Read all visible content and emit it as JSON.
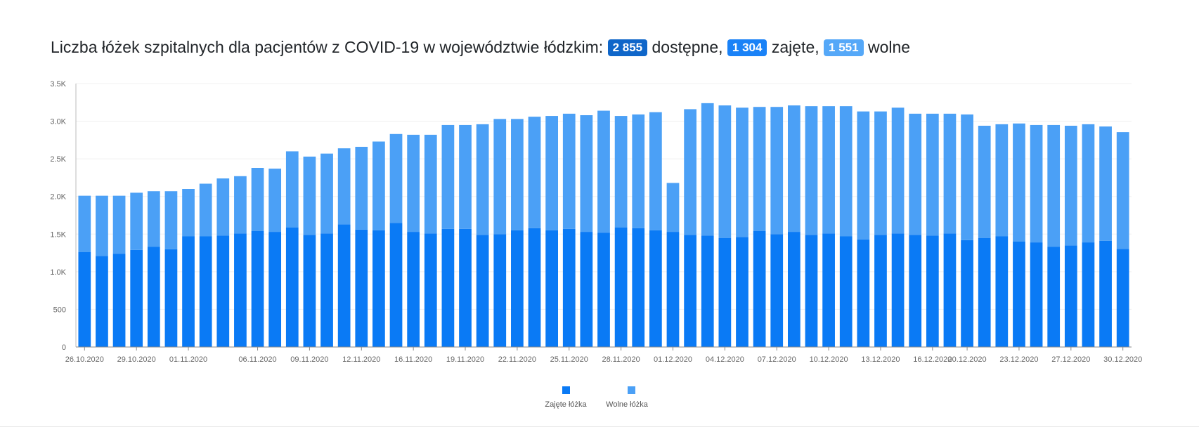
{
  "title": {
    "prefix": "Liczba łóżek szpitalnych dla pacjentów z COVID-19 w województwie łódzkim:",
    "total": "2 855",
    "total_suffix": "dostępne,",
    "occupied": "1 304",
    "occupied_suffix": "zajęte,",
    "free": "1 551",
    "free_suffix": "wolne"
  },
  "colors": {
    "occupied": "#0a7af5",
    "free": "#4ba0f6",
    "badge_total": "#0f66c9",
    "badge_occupied": "#1a82f7",
    "badge_free": "#55a8f8"
  },
  "chart_data": {
    "type": "bar",
    "stacked": true,
    "legend_position": "bottom-center",
    "grid": true,
    "ylim": [
      0,
      3500
    ],
    "yticks": [
      0,
      500,
      1000,
      1500,
      2000,
      2500,
      3000,
      3500
    ],
    "ytick_labels": [
      "0",
      "500",
      "1.0K",
      "1.5K",
      "2.0K",
      "2.5K",
      "3.0K",
      "3.5K"
    ],
    "x": [
      "26.10.2020",
      "27.10.2020",
      "28.10.2020",
      "29.10.2020",
      "30.10.2020",
      "31.10.2020",
      "01.11.2020",
      "02.11.2020",
      "03.11.2020",
      "05.11.2020",
      "06.11.2020",
      "07.11.2020",
      "08.11.2020",
      "09.11.2020",
      "10.11.2020",
      "11.11.2020",
      "12.11.2020",
      "13.11.2020",
      "14.11.2020",
      "16.11.2020",
      "17.11.2020",
      "18.11.2020",
      "19.11.2020",
      "20.11.2020",
      "21.11.2020",
      "22.11.2020",
      "23.11.2020",
      "24.11.2020",
      "25.11.2020",
      "26.11.2020",
      "27.11.2020",
      "28.11.2020",
      "29.11.2020",
      "30.11.2020",
      "01.12.2020",
      "02.12.2020",
      "03.12.2020",
      "04.12.2020",
      "05.12.2020",
      "06.12.2020",
      "07.12.2020",
      "08.12.2020",
      "09.12.2020",
      "10.12.2020",
      "11.12.2020",
      "12.12.2020",
      "13.12.2020",
      "14.12.2020",
      "15.12.2020",
      "16.12.2020",
      "18.12.2020",
      "20.12.2020",
      "21.12.2020",
      "22.12.2020",
      "23.12.2020",
      "24.12.2020",
      "26.12.2020",
      "27.12.2020",
      "28.12.2020",
      "29.12.2020",
      "30.12.2020"
    ],
    "xtick_labels": [
      "26.10.2020",
      "29.10.2020",
      "01.11.2020",
      "06.11.2020",
      "09.11.2020",
      "12.11.2020",
      "16.11.2020",
      "19.11.2020",
      "22.11.2020",
      "25.11.2020",
      "28.11.2020",
      "01.12.2020",
      "04.12.2020",
      "07.12.2020",
      "10.12.2020",
      "13.12.2020",
      "16.12.2020",
      "20.12.2020",
      "23.12.2020",
      "27.12.2020",
      "30.12.2020"
    ],
    "series": [
      {
        "name": "Zajęte łóżka",
        "color": "#0a7af5",
        "values": [
          1260,
          1210,
          1240,
          1290,
          1330,
          1300,
          1470,
          1470,
          1480,
          1510,
          1540,
          1530,
          1590,
          1490,
          1510,
          1630,
          1560,
          1550,
          1650,
          1530,
          1510,
          1570,
          1570,
          1490,
          1500,
          1550,
          1580,
          1550,
          1570,
          1530,
          1520,
          1590,
          1580,
          1550,
          1530,
          1490,
          1480,
          1450,
          1460,
          1540,
          1500,
          1530,
          1490,
          1510,
          1470,
          1430,
          1490,
          1510,
          1490,
          1480,
          1510,
          1420,
          1450,
          1470,
          1400,
          1390,
          1330,
          1350,
          1390,
          1410,
          1304
        ]
      },
      {
        "name": "Wolne łóżka",
        "color": "#4ba0f6",
        "values": [
          750,
          800,
          770,
          760,
          740,
          770,
          630,
          700,
          760,
          760,
          840,
          840,
          1010,
          1040,
          1060,
          1010,
          1100,
          1180,
          1180,
          1290,
          1310,
          1380,
          1380,
          1470,
          1530,
          1480,
          1480,
          1520,
          1530,
          1550,
          1620,
          1480,
          1510,
          1570,
          650,
          1670,
          1760,
          1760,
          1720,
          1650,
          1690,
          1680,
          1710,
          1690,
          1730,
          1700,
          1640,
          1670,
          1610,
          1620,
          1590,
          1670,
          1490,
          1490,
          1570,
          1560,
          1620,
          1590,
          1570,
          1520,
          1551
        ]
      }
    ]
  }
}
